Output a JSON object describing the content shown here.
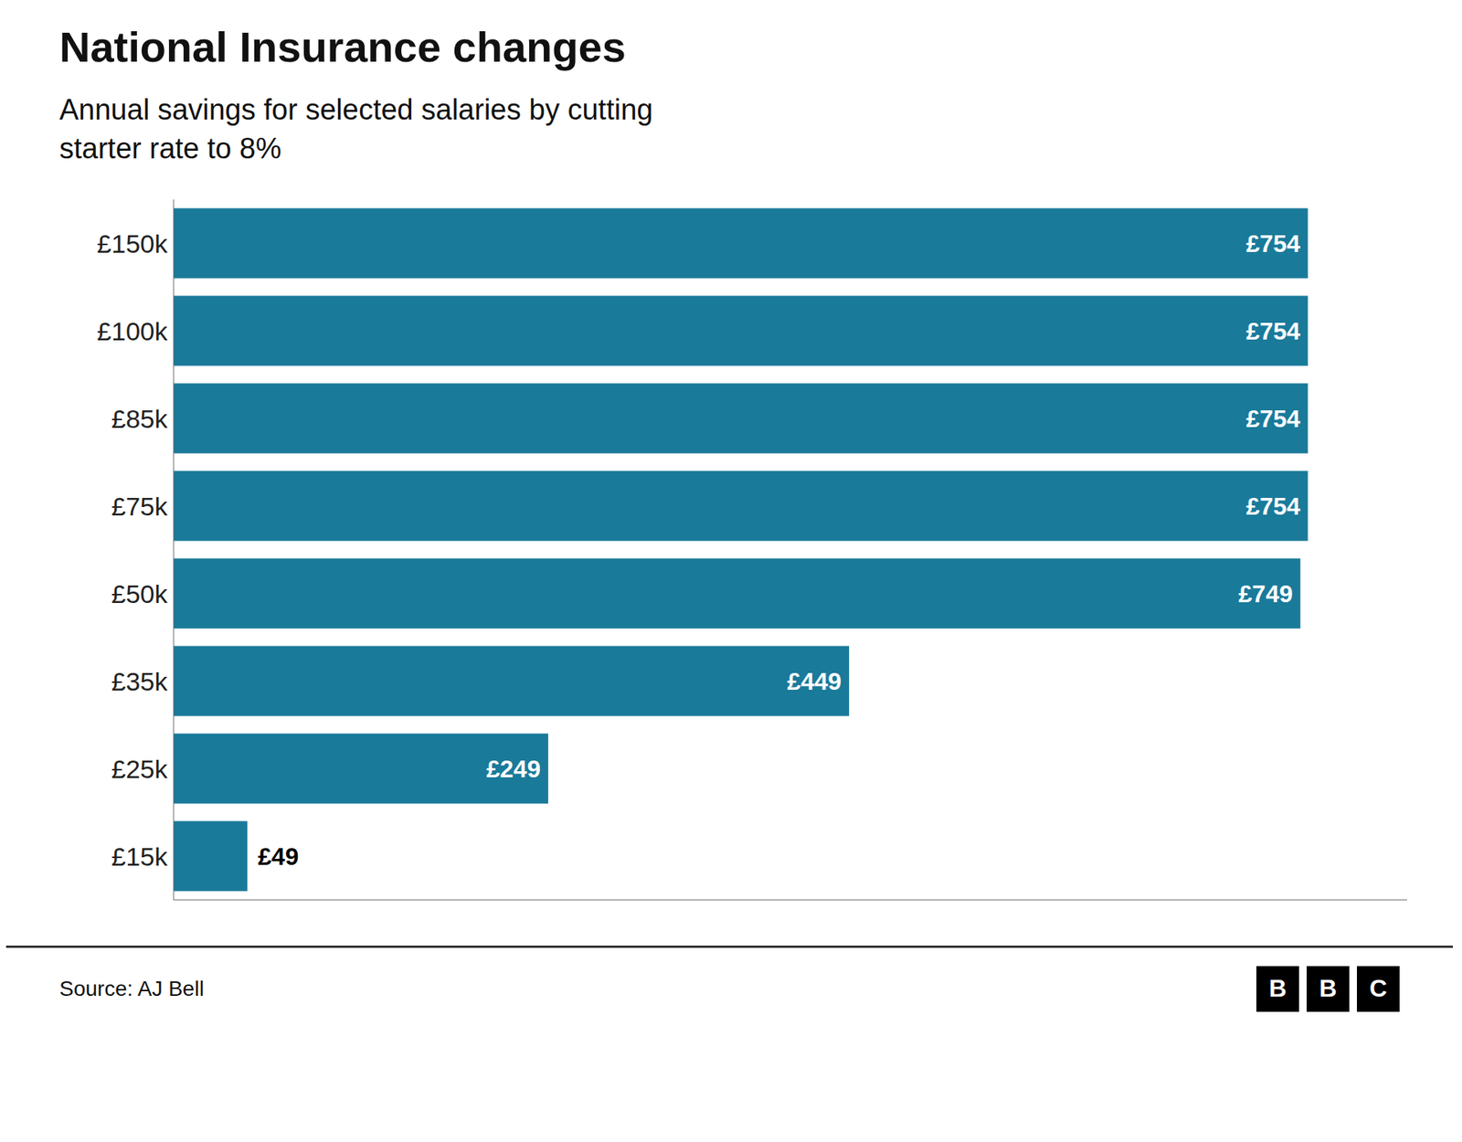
{
  "chart_data": {
    "type": "bar",
    "orientation": "horizontal",
    "title": "National Insurance changes",
    "subtitle": "Annual savings for selected salaries by cutting\nstarter rate to 8%",
    "annotations": [
      "Source: AJ Bell",
      "BBC"
    ],
    "categories": [
      "£150k",
      "£100k",
      "£85k",
      "£75k",
      "£50k",
      "£35k",
      "£25k",
      "£15k"
    ],
    "values": [
      754,
      754,
      754,
      754,
      749,
      449,
      249,
      49
    ],
    "value_labels": [
      "£754",
      "£754",
      "£754",
      "£754",
      "£749",
      "£449",
      "£249",
      "£49"
    ],
    "data_labels": true,
    "color": "#1a7a9a",
    "xlim": [
      0,
      820
    ],
    "tick_labels": "y",
    "grid": false
  }
}
